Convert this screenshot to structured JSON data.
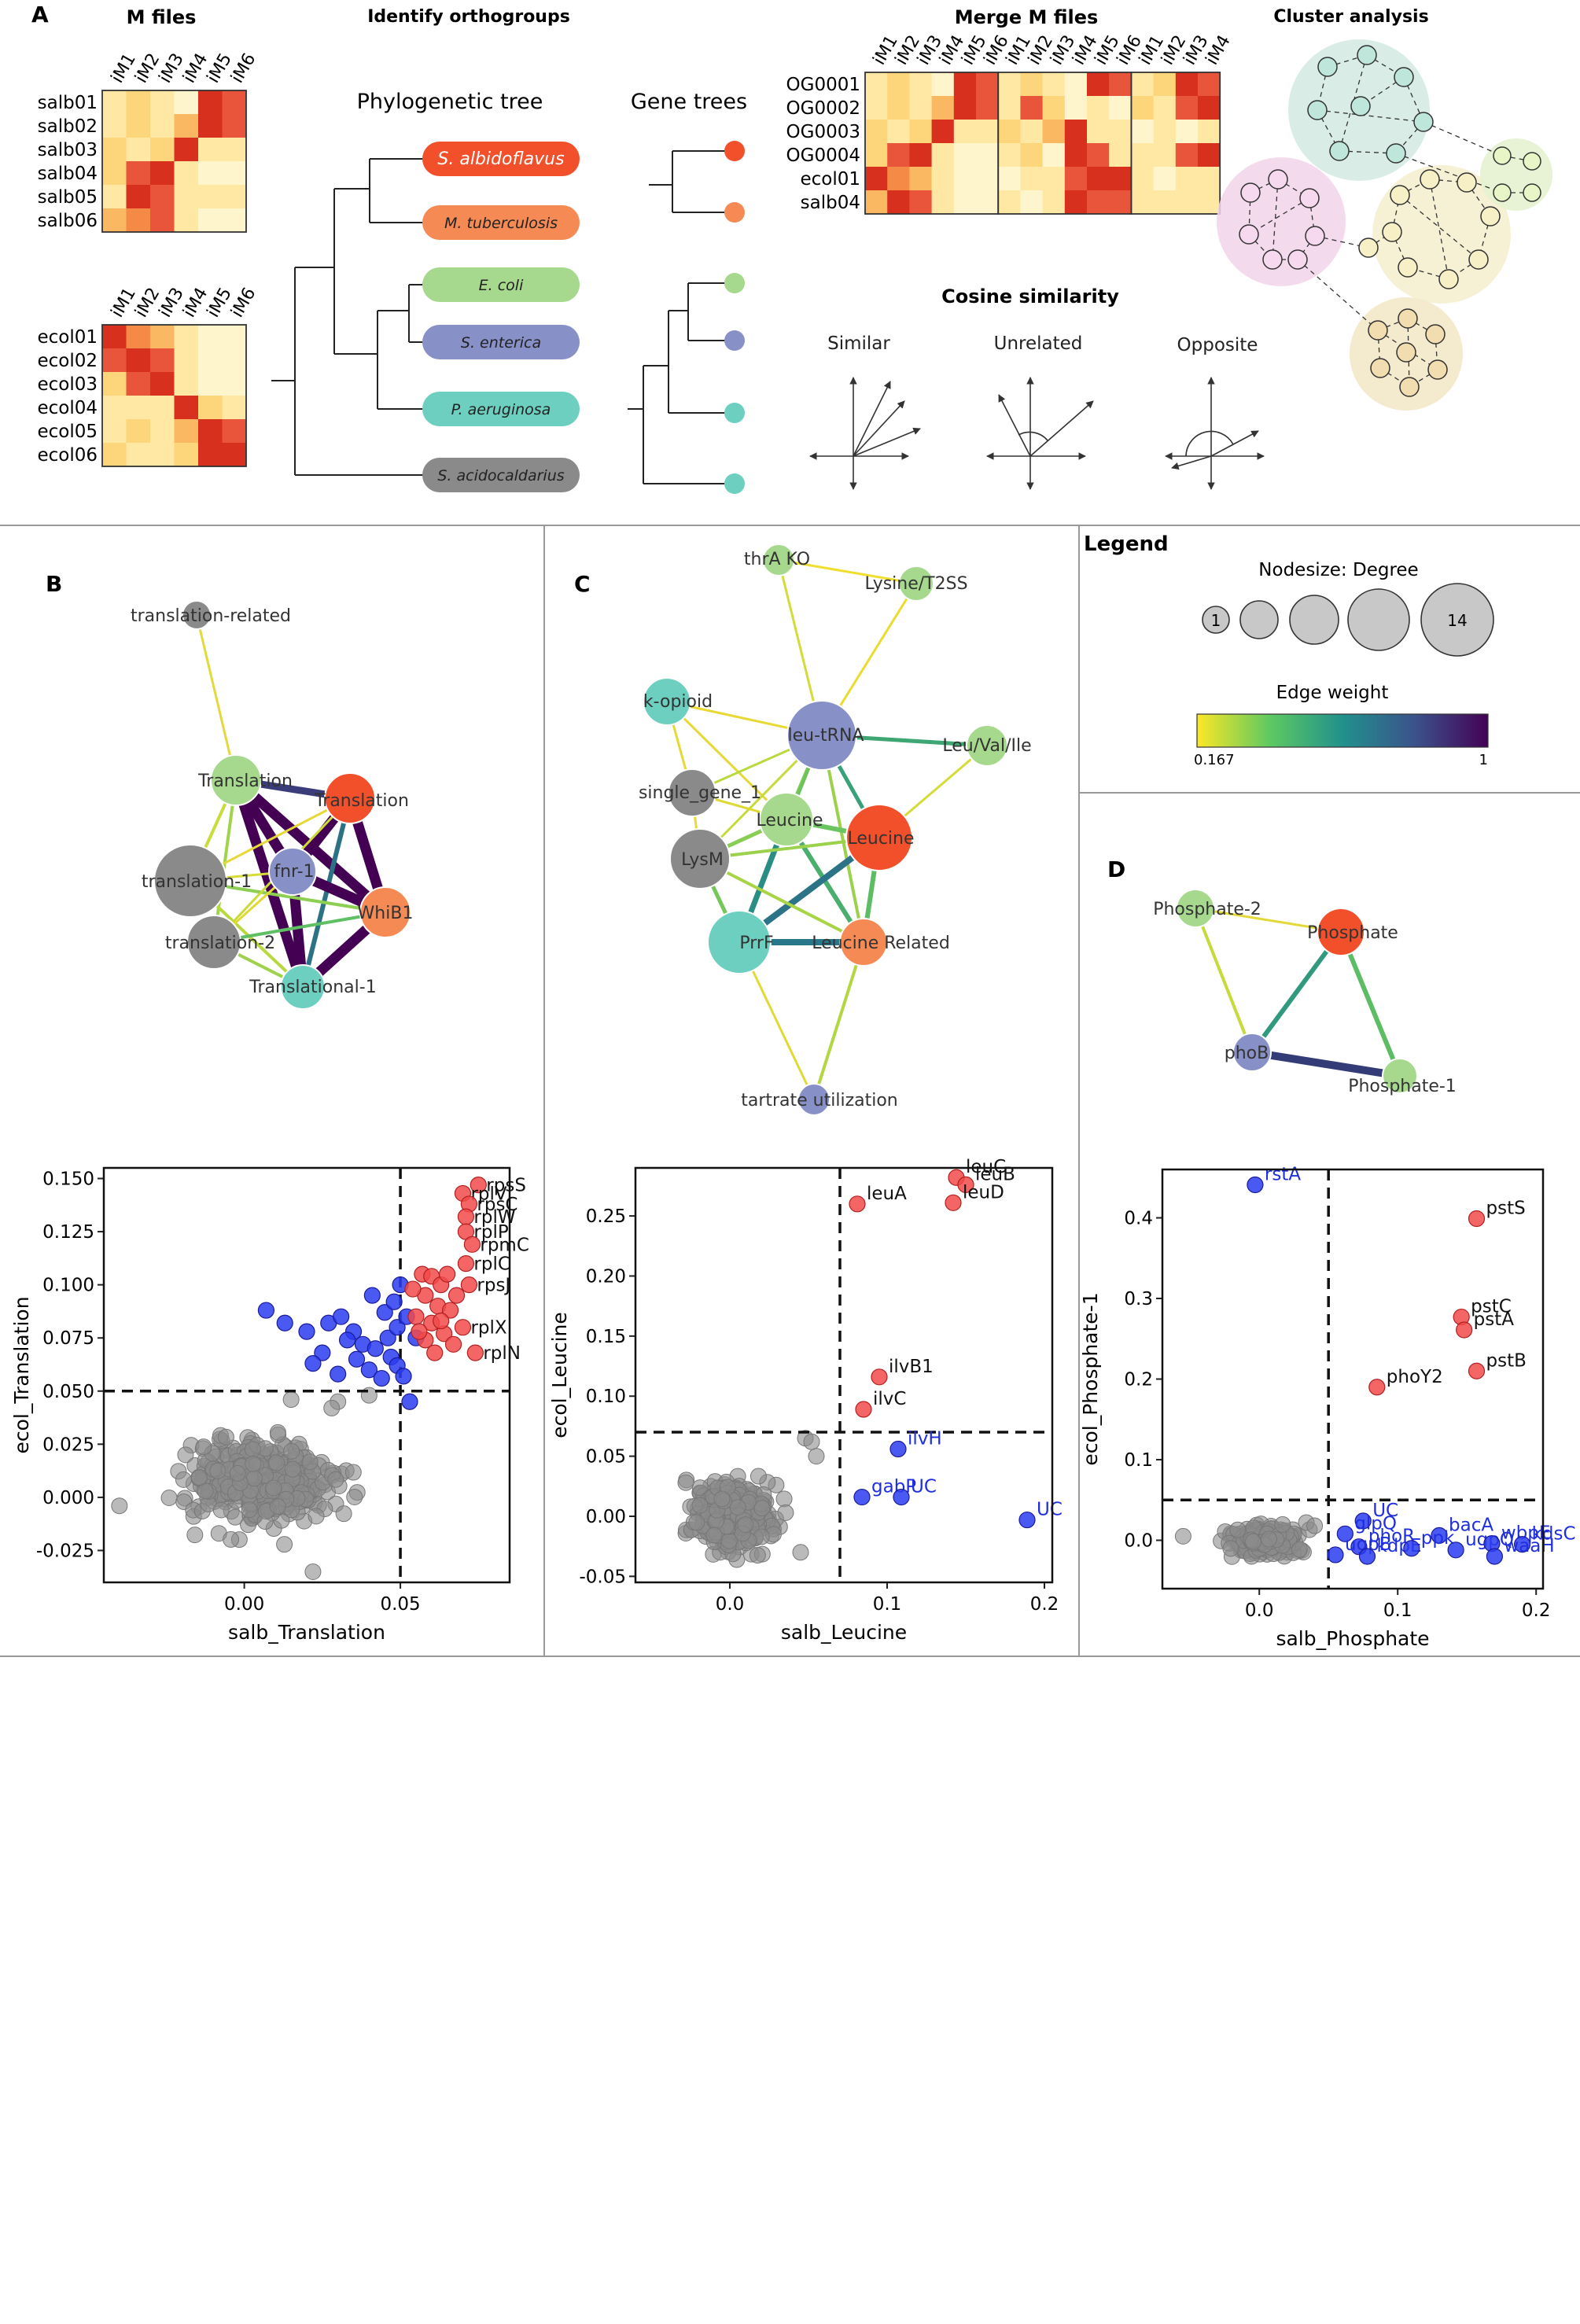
{
  "panel_a": {
    "letter": "A",
    "heat_palette": [
      "#fff5cc",
      "#ffe8a3",
      "#fdd57a",
      "#fbb862",
      "#f58a47",
      "#e8553a",
      "#d7301f"
    ],
    "m_files": {
      "title": "M files",
      "columns": [
        "iM1",
        "iM2",
        "iM3",
        "iM4",
        "iM5",
        "iM6"
      ],
      "salb": {
        "rows": [
          "salb01",
          "salb02",
          "salb03",
          "salb04",
          "salb05",
          "salb06"
        ],
        "values": [
          [
            1,
            2,
            1,
            0,
            6,
            5
          ],
          [
            1,
            2,
            1,
            3,
            6,
            5
          ],
          [
            2,
            1,
            2,
            6,
            1,
            1
          ],
          [
            2,
            5,
            6,
            1,
            0,
            0
          ],
          [
            1,
            6,
            5,
            1,
            1,
            1
          ],
          [
            3,
            4,
            5,
            1,
            0,
            0
          ]
        ]
      },
      "ecol": {
        "rows": [
          "ecol01",
          "ecol02",
          "ecol03",
          "ecol04",
          "ecol05",
          "ecol06"
        ],
        "values": [
          [
            6,
            4,
            3,
            1,
            0,
            0
          ],
          [
            5,
            6,
            5,
            1,
            0,
            0
          ],
          [
            2,
            5,
            6,
            1,
            0,
            0
          ],
          [
            1,
            1,
            1,
            6,
            2,
            1
          ],
          [
            1,
            2,
            1,
            3,
            6,
            5
          ],
          [
            2,
            1,
            1,
            2,
            6,
            6
          ]
        ]
      }
    },
    "orthogroups": {
      "title": "Identify orthogroups",
      "phylo_title": "Phylogenetic tree",
      "gene_title": "Gene trees",
      "species": [
        {
          "name": "S. albidoflavus",
          "color": "#f1502a"
        },
        {
          "name": "M. tuberculosis",
          "color": "#f58a55"
        },
        {
          "name": "E. coli",
          "color": "#a6d98d"
        },
        {
          "name": "S. enterica",
          "color": "#8890c8"
        },
        {
          "name": "P. aeruginosa",
          "color": "#6ccfc0"
        },
        {
          "name": "S. acidocaldarius",
          "color": "#8a8a8a"
        }
      ]
    },
    "merge": {
      "title": "Merge M files",
      "columns": [
        "iM1",
        "iM2",
        "iM3",
        "iM4",
        "iM5",
        "iM6",
        "iM1",
        "iM2",
        "iM3",
        "iM4",
        "iM5",
        "iM6",
        "iM1",
        "iM2",
        "iM3",
        "iM4"
      ],
      "rows": [
        "OG0001",
        "OG0002",
        "OG0003",
        "OG0004",
        "ecol01",
        "salb04"
      ],
      "values": [
        [
          1,
          2,
          1,
          0,
          6,
          5,
          1,
          2,
          1,
          0,
          6,
          5,
          1,
          2,
          6,
          5
        ],
        [
          1,
          2,
          1,
          3,
          6,
          5,
          1,
          5,
          2,
          0,
          1,
          0,
          2,
          1,
          5,
          6
        ],
        [
          2,
          1,
          2,
          6,
          1,
          1,
          2,
          1,
          3,
          6,
          1,
          1,
          0,
          1,
          0,
          1
        ],
        [
          2,
          5,
          6,
          1,
          0,
          0,
          1,
          2,
          0,
          6,
          5,
          1,
          1,
          1,
          5,
          6
        ],
        [
          6,
          4,
          3,
          1,
          0,
          0,
          0,
          1,
          1,
          5,
          6,
          6,
          1,
          0,
          1,
          1
        ],
        [
          3,
          6,
          5,
          1,
          0,
          0,
          1,
          0,
          1,
          6,
          5,
          5,
          1,
          1,
          1,
          1
        ]
      ]
    },
    "cosine": {
      "title": "Cosine similarity",
      "labels": [
        "Similar",
        "Unrelated",
        "Opposite"
      ]
    },
    "cluster": {
      "title": "Cluster analysis"
    }
  },
  "panel_b": {
    "letter": "B",
    "network": {
      "nodes": [
        {
          "id": "tr-rel",
          "label": "translation-related",
          "color": "#8a8a8a"
        },
        {
          "id": "Translation-g",
          "label": "Translation",
          "color": "#a6d98d"
        },
        {
          "id": "translation-o",
          "label": "Translation",
          "color": "#f1502a"
        },
        {
          "id": "fnr-1",
          "label": "fnr-1",
          "color": "#8890c8"
        },
        {
          "id": "translation-1",
          "label": "translation-1",
          "color": "#8a8a8a"
        },
        {
          "id": "translation-2",
          "label": "translation-2",
          "color": "#8a8a8a"
        },
        {
          "id": "WhiB1",
          "label": "WhiB1",
          "color": "#f58a55"
        },
        {
          "id": "Translational-1",
          "label": "Translational-1",
          "color": "#6ccfc0"
        }
      ]
    },
    "chart_data": {
      "type": "scatter",
      "xlabel": "salb_Translation",
      "ylabel": "ecol_Translation",
      "xlim": [
        -0.045,
        0.085
      ],
      "ylim": [
        -0.04,
        0.155
      ],
      "xticks": [
        "0.00",
        "0.05"
      ],
      "yticks": [
        "-0.025",
        "0.000",
        "0.025",
        "0.050",
        "0.075",
        "0.100",
        "0.125",
        "0.150"
      ],
      "thresholds": {
        "x": 0.05,
        "y": 0.05
      },
      "labeled_points": [
        {
          "label": "rpsS",
          "x": 0.075,
          "y": 0.147
        },
        {
          "label": "rplV",
          "x": 0.07,
          "y": 0.143
        },
        {
          "label": "rpsC",
          "x": 0.072,
          "y": 0.138
        },
        {
          "label": "rplW",
          "x": 0.071,
          "y": 0.132
        },
        {
          "label": "rplP",
          "x": 0.071,
          "y": 0.125
        },
        {
          "label": "rpmC",
          "x": 0.073,
          "y": 0.119
        },
        {
          "label": "rplC",
          "x": 0.071,
          "y": 0.11
        },
        {
          "label": "rpsJ",
          "x": 0.072,
          "y": 0.1
        },
        {
          "label": "rplX",
          "x": 0.07,
          "y": 0.08
        },
        {
          "label": "rplN",
          "x": 0.074,
          "y": 0.068
        }
      ],
      "red_points": [
        [
          0.057,
          0.105
        ],
        [
          0.06,
          0.104
        ],
        [
          0.063,
          0.1
        ],
        [
          0.058,
          0.095
        ],
        [
          0.062,
          0.09
        ],
        [
          0.066,
          0.088
        ],
        [
          0.055,
          0.085
        ],
        [
          0.06,
          0.082
        ],
        [
          0.064,
          0.077
        ],
        [
          0.058,
          0.074
        ],
        [
          0.067,
          0.072
        ],
        [
          0.061,
          0.068
        ],
        [
          0.056,
          0.078
        ],
        [
          0.068,
          0.095
        ],
        [
          0.065,
          0.105
        ],
        [
          0.054,
          0.098
        ],
        [
          0.063,
          0.083
        ]
      ],
      "blue_points": [
        [
          0.007,
          0.088
        ],
        [
          0.013,
          0.082
        ],
        [
          0.02,
          0.078
        ],
        [
          0.027,
          0.082
        ],
        [
          0.031,
          0.085
        ],
        [
          0.035,
          0.078
        ],
        [
          0.038,
          0.072
        ],
        [
          0.042,
          0.07
        ],
        [
          0.046,
          0.075
        ],
        [
          0.049,
          0.08
        ],
        [
          0.045,
          0.087
        ],
        [
          0.041,
          0.095
        ],
        [
          0.048,
          0.092
        ],
        [
          0.05,
          0.1
        ],
        [
          0.052,
          0.085
        ],
        [
          0.036,
          0.065
        ],
        [
          0.04,
          0.06
        ],
        [
          0.044,
          0.056
        ],
        [
          0.03,
          0.058
        ],
        [
          0.025,
          0.068
        ],
        [
          0.022,
          0.063
        ],
        [
          0.033,
          0.074
        ],
        [
          0.047,
          0.066
        ],
        [
          0.049,
          0.062
        ],
        [
          0.053,
          0.045
        ],
        [
          0.051,
          0.057
        ],
        [
          0.055,
          0.075
        ]
      ],
      "grey_cloud": {
        "x_mean": 0.005,
        "y_mean": 0.008,
        "x_sd": 0.011,
        "y_sd": 0.009,
        "n": 420,
        "extra": [
          [
            -0.04,
            -0.004
          ],
          [
            0.03,
            0.045
          ],
          [
            0.028,
            0.042
          ],
          [
            0.022,
            -0.035
          ],
          [
            0.015,
            0.046
          ],
          [
            0.04,
            0.048
          ]
        ]
      }
    }
  },
  "panel_c": {
    "letter": "C",
    "network": {
      "nodes": [
        {
          "id": "thrA",
          "label": "thrA KO",
          "color": "#a6d98d"
        },
        {
          "id": "lys",
          "label": "Lysine/T2SS",
          "color": "#a6d98d"
        },
        {
          "id": "kop",
          "label": "k-opioid",
          "color": "#6ccfc0"
        },
        {
          "id": "leutrna",
          "label": "leu-tRNA",
          "color": "#8890c8"
        },
        {
          "id": "lvi",
          "label": "Leu/Val/Ile",
          "color": "#a6d98d"
        },
        {
          "id": "sg1",
          "label": "single_gene_1",
          "color": "#8a8a8a"
        },
        {
          "id": "leu-g",
          "label": "Leucine",
          "color": "#a6d98d"
        },
        {
          "id": "leu-o",
          "label": "Leucine",
          "color": "#f1502a"
        },
        {
          "id": "lysm",
          "label": "LysM",
          "color": "#8a8a8a"
        },
        {
          "id": "prrf",
          "label": "PrrF",
          "color": "#6ccfc0"
        },
        {
          "id": "leurel",
          "label": "Leucine Related",
          "color": "#f58a55"
        },
        {
          "id": "tart",
          "label": "tartrate utilization",
          "color": "#8890c8"
        }
      ]
    },
    "chart_data": {
      "type": "scatter",
      "xlabel": "salb_Leucine",
      "ylabel": "ecol_Leucine",
      "xlim": [
        -0.06,
        0.205
      ],
      "ylim": [
        -0.055,
        0.29
      ],
      "xticks": [
        "0.0",
        "0.1",
        "0.2"
      ],
      "yticks": [
        "-0.05",
        "0.00",
        "0.05",
        "0.10",
        "0.15",
        "0.20",
        "0.25"
      ],
      "thresholds": {
        "x": 0.07,
        "y": 0.07
      },
      "red_points": [
        {
          "label": "leuC",
          "x": 0.144,
          "y": 0.282
        },
        {
          "label": "leuB",
          "x": 0.15,
          "y": 0.276
        },
        {
          "label": "leuD",
          "x": 0.142,
          "y": 0.261
        },
        {
          "label": "leuA",
          "x": 0.081,
          "y": 0.26
        },
        {
          "label": "ilvB1",
          "x": 0.095,
          "y": 0.116
        },
        {
          "label": "ilvC",
          "x": 0.085,
          "y": 0.089
        }
      ],
      "blue_points": [
        {
          "label": "ilvH",
          "x": 0.107,
          "y": 0.056
        },
        {
          "label": "gabP",
          "x": 0.084,
          "y": 0.016
        },
        {
          "label": "UC",
          "x": 0.109,
          "y": 0.016
        },
        {
          "label": "UC",
          "x": 0.189,
          "y": -0.003
        }
      ],
      "grey_cloud": {
        "x_mean": 0.0,
        "y_mean": 0.0,
        "x_sd": 0.012,
        "y_sd": 0.013,
        "n": 380,
        "extra": [
          [
            0.048,
            0.065
          ],
          [
            0.052,
            0.062
          ],
          [
            0.055,
            0.05
          ],
          [
            0.045,
            -0.03
          ],
          [
            -0.028,
            0.028
          ]
        ]
      }
    }
  },
  "legend": {
    "title": "Legend",
    "nodesize_title": "Nodesize: Degree",
    "nodesize_min_label": "1",
    "nodesize_max_label": "14",
    "edge_title": "Edge weight",
    "edge_min": "0.167",
    "edge_max": "1"
  },
  "panel_d": {
    "letter": "D",
    "network": {
      "nodes": [
        {
          "id": "p2",
          "label": "Phosphate-2",
          "color": "#a6d98d"
        },
        {
          "id": "ph",
          "label": "Phosphate",
          "color": "#f1502a"
        },
        {
          "id": "phoB",
          "label": "phoB",
          "color": "#8890c8"
        },
        {
          "id": "p1",
          "label": "Phosphate-1",
          "color": "#a6d98d"
        }
      ]
    },
    "chart_data": {
      "type": "scatter",
      "xlabel": "salb_Phosphate",
      "ylabel": "ecol_Phosphate-1",
      "xlim": [
        -0.07,
        0.205
      ],
      "ylim": [
        -0.06,
        0.46
      ],
      "xticks": [
        "0.0",
        "0.1",
        "0.2"
      ],
      "yticks": [
        "0.0",
        "0.1",
        "0.2",
        "0.3",
        "0.4"
      ],
      "thresholds": {
        "x": 0.05,
        "y": 0.05
      },
      "red_points": [
        {
          "label": "pstS",
          "x": 0.157,
          "y": 0.399
        },
        {
          "label": "pstC",
          "x": 0.146,
          "y": 0.277
        },
        {
          "label": "pstA",
          "x": 0.148,
          "y": 0.261
        },
        {
          "label": "pstB",
          "x": 0.157,
          "y": 0.21
        },
        {
          "label": "phoY2",
          "x": 0.085,
          "y": 0.19
        }
      ],
      "blue_points": [
        {
          "label": "rstA",
          "x": -0.003,
          "y": 0.441
        },
        {
          "label": "UC",
          "x": 0.075,
          "y": 0.024
        },
        {
          "label": "glpQ",
          "x": 0.062,
          "y": 0.008
        },
        {
          "label": "phoR",
          "x": 0.072,
          "y": -0.008
        },
        {
          "label": "ugpB",
          "x": 0.055,
          "y": -0.018
        },
        {
          "label": "kdpE",
          "x": 0.078,
          "y": -0.02
        },
        {
          "label": "bacA",
          "x": 0.13,
          "y": 0.006
        },
        {
          "label": "ppk",
          "x": 0.11,
          "y": -0.01
        },
        {
          "label": "ugpQ",
          "x": 0.142,
          "y": -0.012
        },
        {
          "label": "wbpE",
          "x": 0.168,
          "y": -0.004
        },
        {
          "label": "kdsC",
          "x": 0.19,
          "y": -0.005
        },
        {
          "label": "waaH",
          "x": 0.17,
          "y": -0.02
        }
      ],
      "grey_cloud": {
        "x_mean": 0.005,
        "y_mean": 0.0,
        "x_sd": 0.011,
        "y_sd": 0.008,
        "n": 300,
        "extra": [
          [
            -0.055,
            0.005
          ],
          [
            0.034,
            0.022
          ],
          [
            0.04,
            0.018
          ]
        ]
      }
    }
  }
}
